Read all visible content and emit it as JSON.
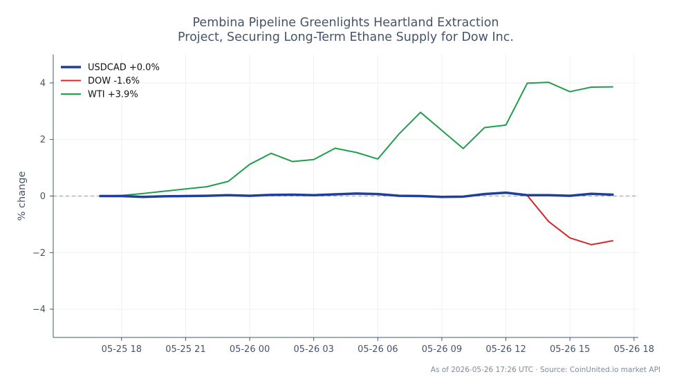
{
  "chart_data": {
    "type": "line",
    "title_lines": [
      "Pembina Pipeline Greenlights Heartland Extraction",
      "Project, Securing Long-Term Ethane Supply for Dow Inc."
    ],
    "xlabel": "",
    "ylabel": "% change",
    "x_tick_labels": [
      "05-25 18",
      "05-25 21",
      "05-26 00",
      "05-26 03",
      "05-26 06",
      "05-26 09",
      "05-26 12",
      "05-26 15",
      "05-26 18"
    ],
    "x_tick_hours": [
      18,
      21,
      24,
      27,
      30,
      33,
      36,
      39,
      42
    ],
    "xlim_hours": [
      14.8,
      42.2
    ],
    "y_ticks": [
      -4,
      -2,
      0,
      2,
      4
    ],
    "y_tick_labels": [
      "−4",
      "−2",
      "0",
      "2",
      "4"
    ],
    "ylim": [
      -5,
      5
    ],
    "grid": true,
    "baseline": 0,
    "legend_position": "top-left",
    "x_hours": [
      17,
      18,
      19,
      20,
      21,
      22,
      23,
      24,
      25,
      26,
      27,
      28,
      29,
      30,
      31,
      32,
      33,
      34,
      35,
      36,
      37,
      38,
      39,
      40,
      41
    ],
    "series": [
      {
        "name": "USDCAD +0.0%",
        "color": "#1f3f9e",
        "width": 3.5,
        "values": [
          0.0,
          0.0,
          -0.03,
          -0.01,
          0.0,
          0.01,
          0.03,
          0.01,
          0.04,
          0.05,
          0.03,
          0.06,
          0.09,
          0.07,
          0.01,
          0.0,
          -0.03,
          -0.02,
          0.07,
          0.12,
          0.03,
          0.03,
          0.01,
          0.08,
          0.05
        ]
      },
      {
        "name": "DOW -1.6%",
        "color": "#d62728",
        "width": 2,
        "values": [
          0.0,
          0.0,
          -0.03,
          -0.01,
          0.0,
          0.01,
          0.03,
          0.01,
          0.04,
          0.05,
          0.03,
          0.06,
          0.09,
          0.07,
          0.01,
          0.0,
          -0.03,
          -0.02,
          0.07,
          0.12,
          0.02,
          -0.9,
          -1.48,
          -1.72,
          -1.58
        ]
      },
      {
        "name": "WTI +3.9%",
        "color": "#1e9e4a",
        "width": 2,
        "values": [
          0.0,
          0.02,
          0.09,
          0.17,
          0.25,
          0.33,
          0.52,
          1.12,
          1.51,
          1.22,
          1.29,
          1.69,
          1.54,
          1.31,
          2.2,
          2.96,
          2.32,
          1.68,
          2.42,
          2.51,
          3.99,
          4.02,
          3.69,
          3.85,
          3.86
        ]
      }
    ]
  },
  "footnote": "As of 2026-05-26 17:26 UTC · Source: CoinUnited.io market API"
}
